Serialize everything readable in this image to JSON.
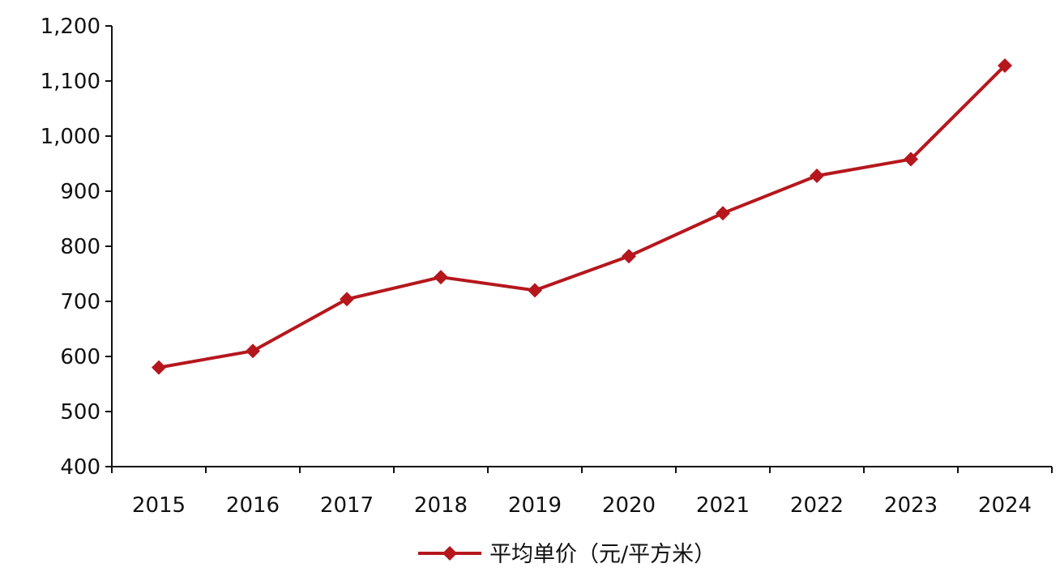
{
  "chart_data": {
    "type": "line",
    "title": "",
    "xlabel": "",
    "ylabel": "",
    "categories": [
      "2015",
      "2016",
      "2017",
      "2018",
      "2019",
      "2020",
      "2021",
      "2022",
      "2023",
      "2024"
    ],
    "series": [
      {
        "name": "平均单价（元/平方米）",
        "values": [
          580,
          610,
          704,
          744,
          720,
          782,
          860,
          928,
          958,
          1128
        ],
        "color": "#b5171d",
        "marker": "diamond"
      }
    ],
    "ylim": [
      400,
      1200
    ],
    "yticks": [
      400,
      500,
      600,
      700,
      800,
      900,
      1000,
      1100,
      1200
    ],
    "ytick_labels": [
      "400",
      "500",
      "600",
      "700",
      "800",
      "900",
      "1,000",
      "1,100",
      "1,200"
    ],
    "grid": false,
    "legend": {
      "position": "bottom-center",
      "label": "平均单价（元/平方米）"
    }
  }
}
